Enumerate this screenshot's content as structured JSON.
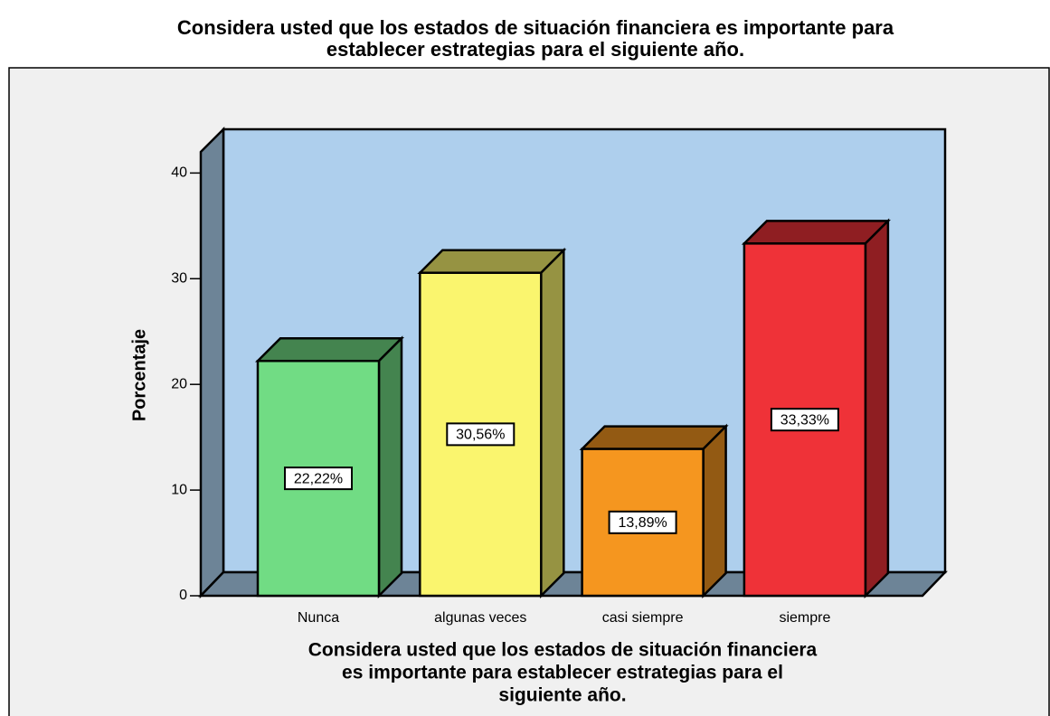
{
  "chart_data": {
    "type": "bar3d",
    "title": [
      "Considera usted que los estados de situación financiera es importante para",
      "establecer estrategias para el siguiente  año."
    ],
    "xlabel": [
      "Considera usted que los estados de situación financiera",
      "es importante para establecer estrategias para el",
      "siguiente  año."
    ],
    "ylabel": "Porcentaje",
    "categories": [
      "Nunca",
      "algunas veces",
      "casi siempre",
      "siempre"
    ],
    "values": [
      22.22,
      30.56,
      13.89,
      33.33
    ],
    "value_labels": [
      "22,22%",
      "30,56%",
      "13,89%",
      "33,33%"
    ],
    "colors": [
      "#71dc84",
      "#faf56e",
      "#f5961f",
      "#ef3238"
    ],
    "ylim": [
      0,
      42
    ],
    "yticks": [
      0,
      10,
      20,
      30,
      40
    ]
  }
}
